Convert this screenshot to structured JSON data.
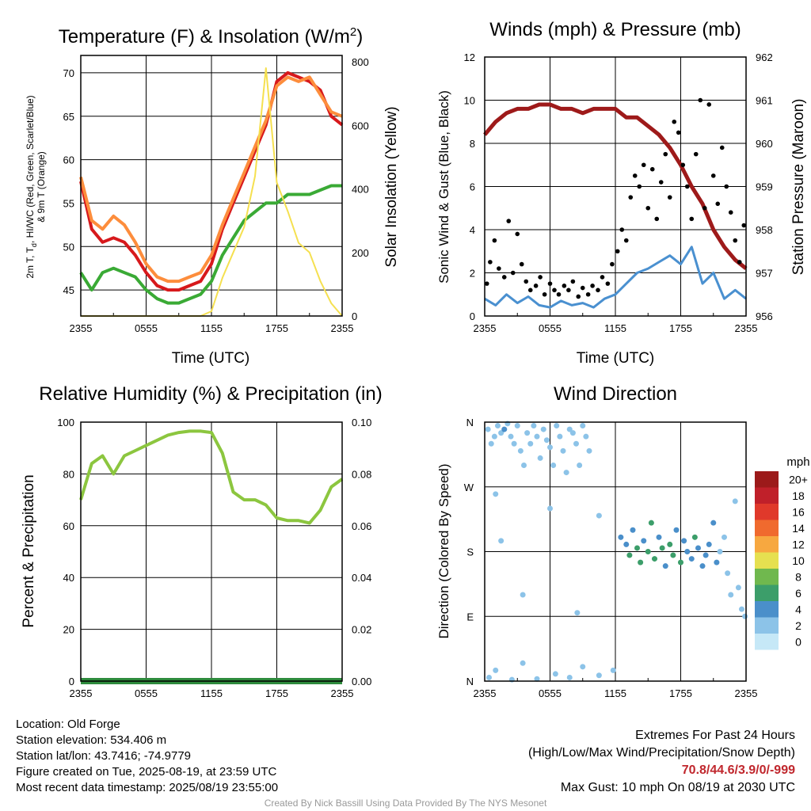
{
  "chart_data": [
    {
      "type": "line",
      "title": "Temperature (F) & Insolation (W/m²)",
      "title_main": "Temperature (F) & Insolation (W/m",
      "title_sup": "2",
      "title_end": ")",
      "xlabel": "Time (UTC)",
      "ylabel_left_line1": "2m T, T",
      "ylabel_left_sub": "d",
      "ylabel_left_line1b": ", HI/WC (Red, Green, Scarlet/Blue)",
      "ylabel_left_line2": "& 9m T (Orange)",
      "ylabel_right": "Solar Insolation (Yellow)",
      "xticks": [
        "2355",
        "0555",
        "1155",
        "1755",
        "2355"
      ],
      "ylim_left": [
        42,
        72
      ],
      "yticks_left": [
        45,
        50,
        55,
        60,
        65,
        70
      ],
      "ylim_right": [
        0,
        820
      ],
      "yticks_right": [
        0,
        200,
        400,
        600,
        800
      ],
      "x_hours": [
        0,
        1,
        2,
        3,
        4,
        5,
        6,
        7,
        8,
        9,
        10,
        11,
        12,
        13,
        14,
        15,
        16,
        17,
        18,
        19,
        20,
        21,
        22,
        23,
        24
      ],
      "series": [
        {
          "color": "#d7191c",
          "axis": "left",
          "values": [
            57.5,
            52,
            50.5,
            51,
            50.5,
            49,
            47,
            45.5,
            45,
            45,
            45.5,
            46,
            48,
            52,
            55,
            58,
            61,
            64,
            69,
            70,
            69.5,
            69,
            68,
            65,
            64
          ]
        },
        {
          "color": "#fd8d3c",
          "axis": "left",
          "values": [
            58,
            53,
            52,
            53.5,
            52.5,
            50.5,
            48,
            46.5,
            46,
            46,
            46.5,
            47,
            49,
            52.5,
            55.5,
            58.5,
            61.5,
            64.5,
            68.5,
            69.5,
            69,
            69.5,
            67.5,
            65.5,
            65
          ]
        },
        {
          "color": "#3aaa35",
          "axis": "left",
          "values": [
            47,
            45,
            47,
            47.5,
            47,
            46.5,
            45,
            44,
            43.5,
            43.5,
            44,
            44.5,
            46,
            49,
            51,
            53,
            54,
            55,
            55,
            56,
            56,
            56,
            56.5,
            57,
            57
          ]
        },
        {
          "color": "#f5e050",
          "axis": "right",
          "values": [
            0,
            0,
            0,
            0,
            0,
            0,
            0,
            0,
            0,
            0,
            0,
            0,
            15,
            120,
            200,
            280,
            440,
            780,
            420,
            330,
            230,
            200,
            110,
            40,
            0
          ]
        }
      ]
    },
    {
      "type": "line",
      "title": "Winds (mph) & Pressure (mb)",
      "xlabel": "Time (UTC)",
      "ylabel_left": "Sonic Wind & Gust (Blue, Black)",
      "ylabel_right": "Station Pressure (Maroon)",
      "xticks": [
        "2355",
        "0555",
        "1155",
        "1755",
        "2355"
      ],
      "ylim_left": [
        0,
        12
      ],
      "yticks_left": [
        0,
        2,
        4,
        6,
        8,
        10,
        12
      ],
      "ylim_right": [
        956,
        962
      ],
      "yticks_right": [
        956,
        957,
        958,
        959,
        960,
        961,
        962
      ],
      "x_hours": [
        0,
        1,
        2,
        3,
        4,
        5,
        6,
        7,
        8,
        9,
        10,
        11,
        12,
        13,
        14,
        15,
        16,
        17,
        18,
        19,
        20,
        21,
        22,
        23,
        24
      ],
      "series": [
        {
          "color": "#4a90d0",
          "axis": "left",
          "values": [
            0.8,
            0.5,
            1.0,
            0.6,
            0.9,
            0.5,
            0.4,
            0.7,
            0.5,
            0.6,
            0.4,
            0.8,
            1.0,
            1.5,
            2.0,
            2.2,
            2.5,
            2.8,
            2.4,
            3.2,
            1.5,
            2.0,
            0.8,
            1.2,
            0.8
          ]
        },
        {
          "color": "#9e1a1a",
          "axis": "right",
          "values": [
            960.2,
            960.5,
            960.7,
            960.8,
            960.8,
            960.9,
            960.9,
            960.8,
            960.8,
            960.7,
            960.8,
            960.8,
            960.8,
            960.6,
            960.6,
            960.4,
            960.2,
            959.9,
            959.5,
            959.0,
            958.6,
            958.0,
            957.6,
            957.3,
            957.1
          ]
        }
      ],
      "gust_points": [
        [
          0.2,
          1.5
        ],
        [
          0.5,
          2.5
        ],
        [
          0.9,
          3.5
        ],
        [
          1.3,
          2.2
        ],
        [
          1.8,
          1.8
        ],
        [
          2.2,
          4.4
        ],
        [
          2.6,
          2.0
        ],
        [
          3.0,
          3.8
        ],
        [
          3.4,
          2.4
        ],
        [
          3.8,
          1.6
        ],
        [
          4.2,
          1.2
        ],
        [
          4.7,
          1.4
        ],
        [
          5.1,
          1.8
        ],
        [
          5.5,
          1.0
        ],
        [
          6.0,
          1.5
        ],
        [
          6.4,
          1.2
        ],
        [
          6.8,
          1.0
        ],
        [
          7.3,
          1.4
        ],
        [
          7.7,
          1.2
        ],
        [
          8.1,
          1.6
        ],
        [
          8.6,
          0.9
        ],
        [
          9.0,
          1.3
        ],
        [
          9.5,
          1.0
        ],
        [
          9.9,
          1.4
        ],
        [
          10.4,
          1.2
        ],
        [
          10.8,
          1.8
        ],
        [
          11.3,
          1.5
        ],
        [
          11.7,
          2.4
        ],
        [
          12.2,
          3.0
        ],
        [
          12.6,
          4.0
        ],
        [
          13.0,
          3.5
        ],
        [
          13.4,
          5.5
        ],
        [
          13.8,
          6.5
        ],
        [
          14.2,
          6.0
        ],
        [
          14.6,
          7.0
        ],
        [
          15.0,
          5.0
        ],
        [
          15.4,
          6.8
        ],
        [
          15.8,
          4.5
        ],
        [
          16.2,
          6.2
        ],
        [
          16.6,
          7.5
        ],
        [
          17.0,
          5.5
        ],
        [
          17.4,
          9.0
        ],
        [
          17.8,
          8.5
        ],
        [
          18.2,
          7.0
        ],
        [
          18.6,
          6.0
        ],
        [
          19.0,
          4.5
        ],
        [
          19.4,
          7.5
        ],
        [
          19.8,
          10.0
        ],
        [
          20.2,
          5.0
        ],
        [
          20.6,
          9.8
        ],
        [
          21.0,
          6.5
        ],
        [
          21.4,
          5.2
        ],
        [
          21.8,
          7.8
        ],
        [
          22.2,
          6.0
        ],
        [
          22.6,
          4.8
        ],
        [
          23.0,
          3.5
        ],
        [
          23.4,
          2.5
        ],
        [
          23.8,
          4.2
        ]
      ]
    },
    {
      "type": "line",
      "title": "Relative Humidity (%) & Precipitation (in)",
      "ylabel_left": "Percent & Precipitation",
      "xticks": [
        "2355",
        "0555",
        "1155",
        "1755",
        "2355"
      ],
      "ylim_left": [
        0,
        100
      ],
      "yticks_left": [
        0,
        20,
        40,
        60,
        80,
        100
      ],
      "ylim_right": [
        0,
        0.1
      ],
      "yticks_right": [
        "0.00",
        "0.02",
        "0.04",
        "0.06",
        "0.08",
        "0.10"
      ],
      "x_hours": [
        0,
        1,
        2,
        3,
        4,
        5,
        6,
        7,
        8,
        9,
        10,
        11,
        12,
        13,
        14,
        15,
        16,
        17,
        18,
        19,
        20,
        21,
        22,
        23,
        24
      ],
      "series": [
        {
          "color": "#8cc63f",
          "axis": "left",
          "values": [
            70,
            84,
            87,
            80,
            87,
            89,
            91,
            93,
            95,
            96,
            96.5,
            96.5,
            96,
            88,
            73,
            70,
            70,
            68,
            63,
            62,
            62,
            61,
            66,
            75,
            78
          ]
        },
        {
          "color": "#2e8b3d",
          "axis": "right",
          "values": [
            0,
            0,
            0,
            0,
            0,
            0,
            0,
            0,
            0,
            0,
            0,
            0,
            0,
            0,
            0,
            0,
            0,
            0,
            0,
            0,
            0,
            0,
            0,
            0,
            0
          ]
        }
      ]
    },
    {
      "type": "scatter",
      "title": "Wind Direction",
      "ylabel_left": "Direction (Colored By Speed)",
      "xticks": [
        "2355",
        "0555",
        "1155",
        "1755",
        "2355"
      ],
      "ylim": [
        0,
        360
      ],
      "yticks": [
        "N",
        "E",
        "S",
        "W",
        "N"
      ],
      "legend_title": "mph",
      "legend_labels": [
        "0",
        "2",
        "4",
        "6",
        "8",
        "10",
        "12",
        "14",
        "16",
        "18",
        "20+"
      ],
      "legend_colors": [
        "#c6e8f7",
        "#8cc3e8",
        "#4a8fca",
        "#3c9e6a",
        "#70b84e",
        "#e6e050",
        "#f7a840",
        "#f06a2e",
        "#e0392b",
        "#c0202a",
        "#9c1a1a"
      ],
      "points": [
        [
          0.3,
          350,
          1
        ],
        [
          0.6,
          330,
          1
        ],
        [
          0.9,
          340,
          1
        ],
        [
          1.2,
          355,
          1
        ],
        [
          1.5,
          345,
          1
        ],
        [
          1.8,
          350,
          2
        ],
        [
          2.1,
          358,
          1
        ],
        [
          2.4,
          340,
          1
        ],
        [
          2.7,
          330,
          1
        ],
        [
          3.0,
          355,
          1
        ],
        [
          3.3,
          320,
          1
        ],
        [
          3.6,
          300,
          1
        ],
        [
          3.9,
          345,
          1
        ],
        [
          4.2,
          330,
          1
        ],
        [
          4.5,
          355,
          1
        ],
        [
          4.8,
          340,
          1
        ],
        [
          5.1,
          310,
          1
        ],
        [
          5.4,
          350,
          1
        ],
        [
          5.7,
          335,
          1
        ],
        [
          6.0,
          325,
          1
        ],
        [
          6.3,
          300,
          1
        ],
        [
          6.6,
          355,
          1
        ],
        [
          6.9,
          340,
          1
        ],
        [
          7.2,
          320,
          1
        ],
        [
          7.5,
          290,
          1
        ],
        [
          7.8,
          350,
          1
        ],
        [
          8.1,
          345,
          1
        ],
        [
          8.4,
          330,
          1
        ],
        [
          8.7,
          300,
          1
        ],
        [
          9.0,
          355,
          1
        ],
        [
          9.3,
          340,
          1
        ],
        [
          9.6,
          320,
          1
        ],
        [
          0.4,
          5,
          1
        ],
        [
          1.0,
          15,
          1
        ],
        [
          2.5,
          2,
          1
        ],
        [
          3.5,
          25,
          1
        ],
        [
          4.8,
          3,
          1
        ],
        [
          6.5,
          10,
          1
        ],
        [
          7.8,
          5,
          1
        ],
        [
          9.0,
          20,
          1
        ],
        [
          10.5,
          8,
          1
        ],
        [
          11.8,
          15,
          1
        ],
        [
          12.5,
          200,
          2
        ],
        [
          13.0,
          190,
          2
        ],
        [
          13.3,
          175,
          3
        ],
        [
          13.6,
          210,
          2
        ],
        [
          14.0,
          185,
          3
        ],
        [
          14.3,
          165,
          3
        ],
        [
          14.6,
          195,
          2
        ],
        [
          15.0,
          180,
          3
        ],
        [
          15.3,
          220,
          3
        ],
        [
          15.6,
          170,
          3
        ],
        [
          16.0,
          200,
          2
        ],
        [
          16.3,
          185,
          3
        ],
        [
          16.6,
          160,
          2
        ],
        [
          17.0,
          190,
          3
        ],
        [
          17.3,
          175,
          3
        ],
        [
          17.6,
          210,
          2
        ],
        [
          18.0,
          165,
          3
        ],
        [
          18.3,
          195,
          2
        ],
        [
          18.6,
          180,
          2
        ],
        [
          19.0,
          170,
          2
        ],
        [
          19.3,
          200,
          3
        ],
        [
          19.6,
          185,
          2
        ],
        [
          20.0,
          160,
          2
        ],
        [
          20.3,
          175,
          2
        ],
        [
          20.6,
          190,
          2
        ],
        [
          21.0,
          220,
          2
        ],
        [
          21.3,
          165,
          2
        ],
        [
          21.6,
          180,
          1
        ],
        [
          22.0,
          200,
          1
        ],
        [
          22.3,
          150,
          1
        ],
        [
          22.6,
          120,
          1
        ],
        [
          23.0,
          250,
          1
        ],
        [
          23.3,
          130,
          1
        ],
        [
          23.6,
          100,
          1
        ],
        [
          23.9,
          90,
          1
        ],
        [
          1.0,
          260,
          1
        ],
        [
          1.5,
          195,
          1
        ],
        [
          3.5,
          120,
          1
        ],
        [
          6.0,
          240,
          1
        ],
        [
          8.5,
          95,
          1
        ],
        [
          10.5,
          230,
          1
        ]
      ]
    }
  ],
  "footer": {
    "location": "Location: Old Forge",
    "elevation": "Station elevation: 534.406 m",
    "latlon": "Station lat/lon: 43.7416; -74.9779",
    "created": "Figure created on Tue, 2025-08-19, at 23:59 UTC",
    "recent": "Most recent data timestamp: 2025/08/19 23:55:00",
    "extremes_title": "Extremes For Past 24 Hours",
    "extremes_sub": "(High/Low/Max Wind/Precipitation/Snow Depth)",
    "extremes_values": "70.8/44.6/3.9/0/-999",
    "max_gust": "Max Gust: 10 mph On 08/19 at 2030 UTC",
    "credit": "Created By Nick Bassill Using Data Provided By The NYS Mesonet"
  }
}
